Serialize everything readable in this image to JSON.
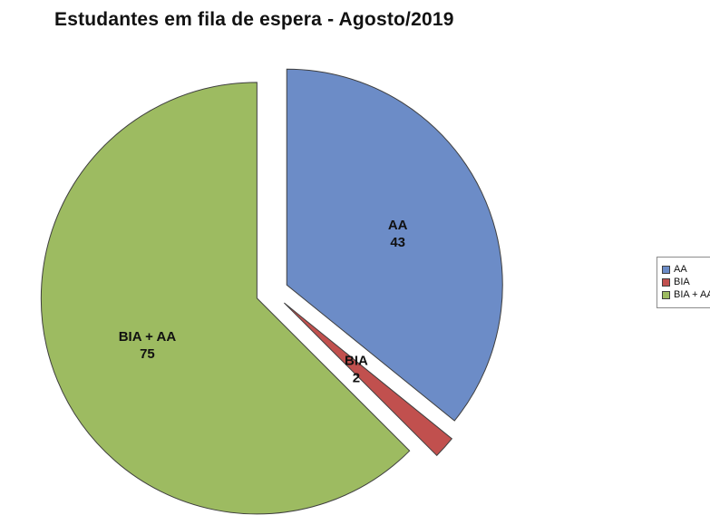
{
  "title": "Estudantes em fila de espera - Agosto/2019",
  "chart_data": {
    "type": "pie",
    "title": "Estudantes em fila de espera - Agosto/2019",
    "categories": [
      "AA",
      "BIA",
      "BIA + AA"
    ],
    "values": [
      43,
      2,
      75
    ],
    "total": 120,
    "colors": [
      "#6c8cc7",
      "#c1504e",
      "#9dbb61"
    ],
    "start_angle_deg": 0,
    "direction": "clockwise",
    "exploded": true,
    "grid": false,
    "legend_position": "right",
    "legend": [
      {
        "label": "AA",
        "color": "#6c8cc7"
      },
      {
        "label": "BIA",
        "color": "#c1504e"
      },
      {
        "label": "BIA + AA",
        "color": "#9dbb61"
      }
    ],
    "slice_labels": [
      {
        "name": "AA",
        "value": "43"
      },
      {
        "name": "BIA",
        "value": "2"
      },
      {
        "name": "BIA + AA",
        "value": "75"
      }
    ],
    "label_radius_fraction": [
      0.57,
      0.45,
      0.55
    ]
  }
}
